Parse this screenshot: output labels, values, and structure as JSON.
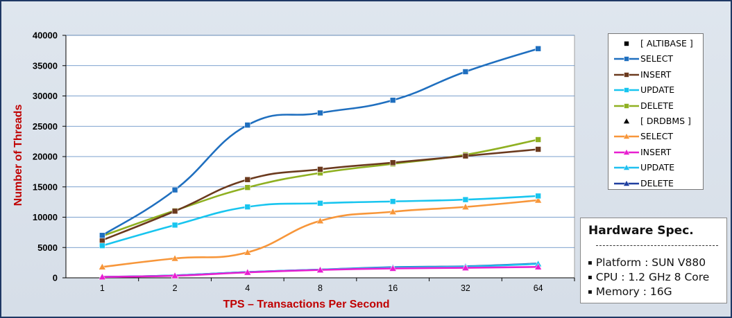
{
  "chart_data": {
    "type": "line",
    "title": "",
    "xlabel": "TPS – Transactions Per Second",
    "ylabel": "Number of Threads",
    "categories": [
      "1",
      "2",
      "4",
      "8",
      "16",
      "32",
      "64"
    ],
    "ylim": [
      0,
      40000
    ],
    "yticks": [
      0,
      5000,
      10000,
      15000,
      20000,
      25000,
      30000,
      35000,
      40000
    ],
    "grid": "horizontal",
    "legend_position": "right",
    "legend_groups": [
      {
        "name": "[ ALTIBASE ]",
        "marker": "square",
        "series": [
          {
            "name": "SELECT",
            "color": "#1f6fbf",
            "marker": "square",
            "values": [
              7000,
              14500,
              25200,
              27200,
              29300,
              34000,
              37800
            ]
          },
          {
            "name": "INSERT",
            "color": "#6b3a1e",
            "marker": "square",
            "values": [
              6200,
              11000,
              16200,
              17900,
              19000,
              20100,
              21200
            ]
          },
          {
            "name": "UPDATE",
            "color": "#18c5ef",
            "marker": "square",
            "values": [
              5300,
              8700,
              11700,
              12300,
              12600,
              12900,
              13500
            ]
          },
          {
            "name": "DELETE",
            "color": "#8fb021",
            "marker": "square",
            "values": [
              6900,
              11100,
              14900,
              17300,
              18800,
              20300,
              22800
            ]
          }
        ]
      },
      {
        "name": "[ DRDBMS ]",
        "marker": "triangle",
        "series": [
          {
            "name": "SELECT",
            "color": "#f7963a",
            "marker": "triangle",
            "values": [
              1800,
              3200,
              4200,
              9400,
              10900,
              11700,
              12800
            ]
          },
          {
            "name": "INSERT",
            "color": "#e81fd0",
            "marker": "triangle",
            "values": [
              150,
              350,
              900,
              1300,
              1550,
              1650,
              1800
            ]
          },
          {
            "name": "UPDATE",
            "color": "#1fc0f0",
            "marker": "triangle",
            "values": [
              150,
              400,
              950,
              1350,
              1700,
              1850,
              2300
            ]
          },
          {
            "name": "DELETE",
            "color": "#1f3f9f",
            "marker": "triangle",
            "values": [
              150,
              400,
              950,
              1350,
              1750,
              1900,
              2350
            ]
          }
        ]
      }
    ]
  },
  "hardware_spec": {
    "title": "Hardware Spec.",
    "bullet": "▪",
    "items": [
      "Platform : SUN V880",
      "CPU : 1.2 GHz 8 Core",
      "Memory : 16G"
    ]
  }
}
